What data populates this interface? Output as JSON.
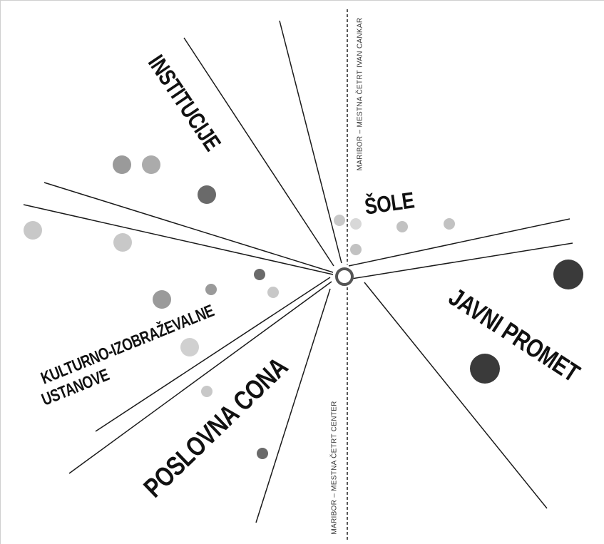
{
  "sectors": {
    "institucije": "INSTITUCIJE",
    "sole": "ŠOLE",
    "javni_promet": "JAVNI PROMET",
    "kulturno_line1": "KULTURNO-IZOBRAŽEVALNE",
    "kulturno_line2": "USTANOVE",
    "poslovna_cona": "POSLOVNA CONA"
  },
  "districts": {
    "top": "MARIBOR – MESTNA ČETRT IVAN CANKAR",
    "bottom": "MARIBOR – MESTNA ČETRT CENTER"
  },
  "colors": {
    "light": "#c8c8c8",
    "medium": "#9a9a9a",
    "dark": "#6a6a6a",
    "darkest": "#3a3a3a"
  }
}
